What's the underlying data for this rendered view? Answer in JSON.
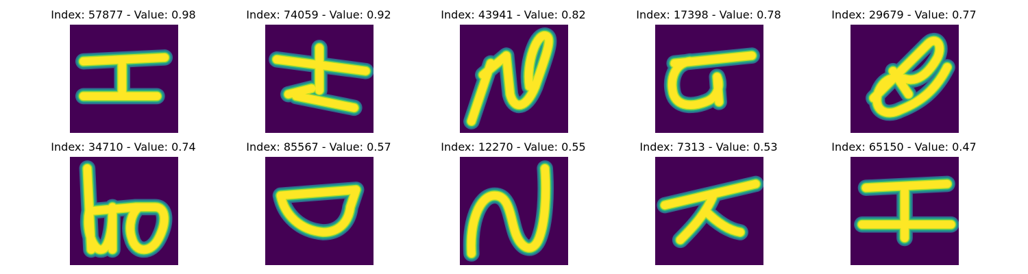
{
  "background_color": "#440154",
  "stroke_colors": {
    "core": "#fde725",
    "edge_1": "#b5de2b",
    "edge_2": "#35b779",
    "edge_3": "#21918c",
    "edge_4": "#31688e"
  },
  "images": [
    {
      "title": "Index: 57877 - Value: 0.98",
      "glyph": "エ"
    },
    {
      "title": "Index: 74059 - Value: 0.92",
      "glyph": "ナ"
    },
    {
      "title": "Index: 43941 - Value: 0.82",
      "glyph": "ね"
    },
    {
      "title": "Index: 17398 - Value: 0.78",
      "glyph": "ぴ"
    },
    {
      "title": "Index: 29679 - Value: 0.77",
      "glyph": "ゆ"
    },
    {
      "title": "Index: 34710 - Value: 0.74",
      "glyph": "ぬ"
    },
    {
      "title": "Index: 85567 - Value: 0.57",
      "glyph": "ロ"
    },
    {
      "title": "Index: 12270 - Value: 0.55",
      "glyph": "ん"
    },
    {
      "title": "Index: 7313 - Value: 0.53",
      "glyph": "ス"
    },
    {
      "title": "Index: 65150 - Value: 0.47",
      "glyph": "エ"
    }
  ]
}
